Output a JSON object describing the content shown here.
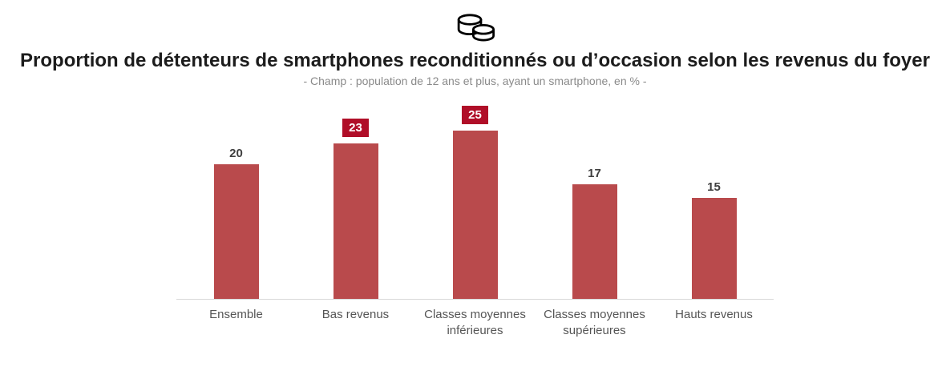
{
  "header": {
    "title": "Proportion de détenteurs de smartphones reconditionnés ou d’occasion selon les revenus du foyer",
    "subtitle": "- Champ : population de 12 ans et plus, ayant un smartphone, en % -",
    "icon": "coins-icon"
  },
  "chart_data": {
    "type": "bar",
    "title": "Proportion de détenteurs de smartphones reconditionnés ou d’occasion selon les revenus du foyer",
    "subtitle": "- Champ : population de 12 ans et plus, ayant un smartphone, en % -",
    "categories": [
      "Ensemble",
      "Bas revenus",
      "Classes moyennes inférieures",
      "Classes moyennes supérieures",
      "Hauts revenus"
    ],
    "values": [
      20,
      23,
      25,
      17,
      15
    ],
    "highlighted": [
      false,
      true,
      true,
      false,
      false
    ],
    "unit": "%",
    "ylim": [
      0,
      25
    ],
    "grid": false,
    "legend": false,
    "bar_color": "#b94a4c",
    "highlight_badge_color": "#b00e28",
    "value_label_color": "#3f3f3f",
    "axis_line_color": "#d9d9d9"
  }
}
